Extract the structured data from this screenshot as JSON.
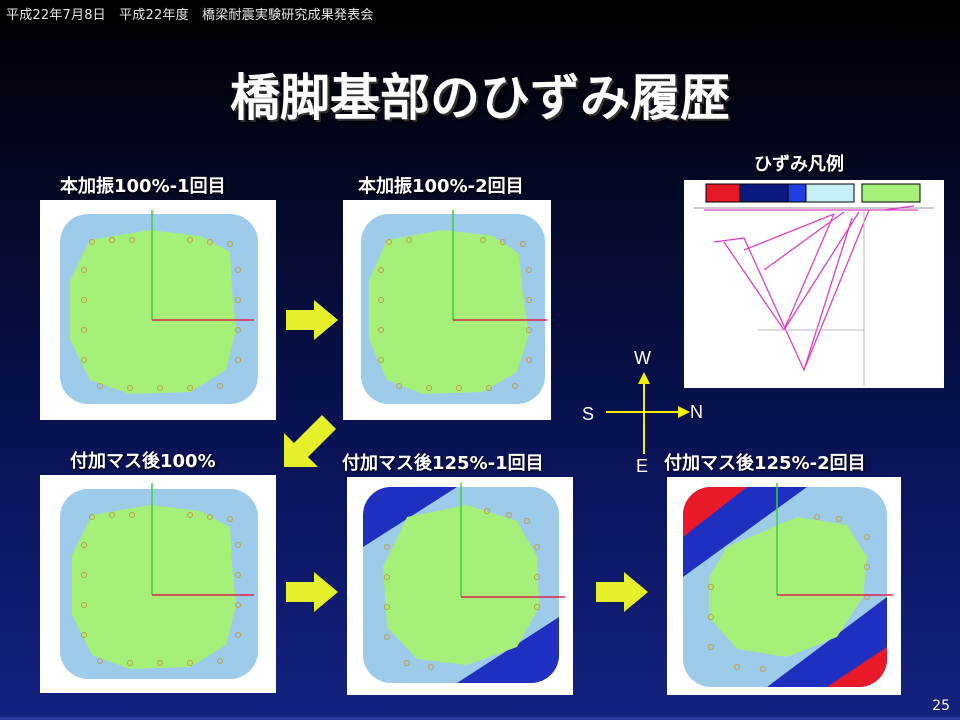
{
  "header": "平成22年7月8日　平成22年度　橋梁耐震実験研究成果発表会",
  "title": "橋脚基部のひずみ履歴",
  "captions": {
    "p1": "本加振100%-1回目",
    "p2": "本加振100%-2回目",
    "p3": "付加マス後100%",
    "p4": "付加マス後125%-1回目",
    "p5": "付加マス後125%-2回目",
    "legend": "ひずみ凡例"
  },
  "compass": {
    "north": "N",
    "south": "S",
    "east": "E",
    "west": "W"
  },
  "page_number": "25",
  "colors": {
    "light_blue": "#9ecbea",
    "green": "#a6f07a",
    "dark_blue": "#1f2fc0",
    "red": "#e81a2a",
    "arrow_yellow": "#e6f02a",
    "compass_yellow": "#f0f000"
  },
  "legend_swatches": [
    "#e81a2a",
    "#0a1a80",
    "#1f3fe0",
    "#c8f0f8",
    "#a6f07a"
  ]
}
